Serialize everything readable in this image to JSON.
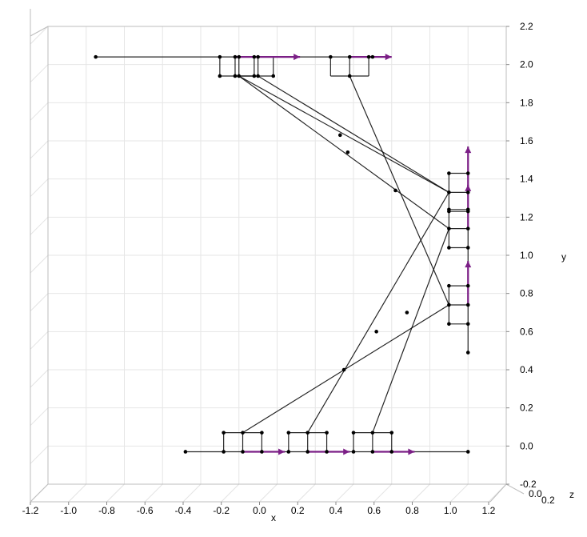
{
  "chart_data": {
    "type": "line3d",
    "xlabel": "x",
    "ylabel": "y",
    "zlabel": "z",
    "xlim": [
      -1.2,
      1.2
    ],
    "ylim": [
      -0.2,
      2.2
    ],
    "zlim": [
      0.0,
      0.2
    ],
    "x_ticks": [
      "-1.2",
      "-1.0",
      "-0.8",
      "-0.6",
      "-0.4",
      "-0.2",
      "0.0",
      "0.2",
      "0.4",
      "0.6",
      "0.8",
      "1.0",
      "1.2"
    ],
    "x_tick_values": [
      -1.2,
      -1.0,
      -0.8,
      -0.6,
      -0.4,
      -0.2,
      0.0,
      0.2,
      0.4,
      0.6,
      0.8,
      1.0,
      1.2
    ],
    "y_ticks": [
      "-0.2",
      "0.0",
      "0.2",
      "0.4",
      "0.6",
      "0.8",
      "1.0",
      "1.2",
      "1.4",
      "1.6",
      "1.8",
      "2.0",
      "2.2"
    ],
    "y_tick_values": [
      -0.2,
      0.0,
      0.2,
      0.4,
      0.6,
      0.8,
      1.0,
      1.2,
      1.4,
      1.6,
      1.8,
      2.0,
      2.2
    ],
    "z_ticks": [
      "0.0",
      "0.2"
    ],
    "z_tick_values": [
      0.0,
      0.2
    ],
    "grid": true,
    "line_color": "#000000",
    "arrow_color": "#7b1f86",
    "lines": [
      [
        [
          -0.95,
          2.04
        ],
        [
          0.5,
          2.04
        ]
      ],
      [
        [
          -0.48,
          -0.03
        ],
        [
          1.0,
          -0.03
        ]
      ],
      [
        [
          1.0,
          0.49
        ],
        [
          1.0,
          1.57
        ]
      ],
      [
        [
          -0.3,
          2.04
        ],
        [
          -0.3,
          1.94
        ]
      ],
      [
        [
          -0.3,
          1.94
        ],
        [
          -0.1,
          1.94
        ]
      ],
      [
        [
          -0.1,
          1.94
        ],
        [
          -0.1,
          2.04
        ]
      ],
      [
        [
          -0.2,
          2.04
        ],
        [
          -0.2,
          1.94
        ]
      ],
      [
        [
          -0.22,
          2.04
        ],
        [
          -0.22,
          1.94
        ]
      ],
      [
        [
          -0.22,
          1.94
        ],
        [
          -0.02,
          1.94
        ]
      ],
      [
        [
          -0.02,
          1.94
        ],
        [
          -0.02,
          2.04
        ]
      ],
      [
        [
          -0.12,
          2.04
        ],
        [
          -0.12,
          1.94
        ]
      ],
      [
        [
          0.28,
          2.04
        ],
        [
          0.28,
          1.94
        ]
      ],
      [
        [
          0.28,
          1.94
        ],
        [
          0.48,
          1.94
        ]
      ],
      [
        [
          0.48,
          1.94
        ],
        [
          0.48,
          2.04
        ]
      ],
      [
        [
          0.38,
          2.04
        ],
        [
          0.38,
          1.94
        ]
      ],
      [
        [
          -0.28,
          -0.03
        ],
        [
          -0.28,
          0.07
        ]
      ],
      [
        [
          -0.28,
          0.07
        ],
        [
          -0.08,
          0.07
        ]
      ],
      [
        [
          -0.08,
          0.07
        ],
        [
          -0.08,
          -0.03
        ]
      ],
      [
        [
          -0.18,
          -0.03
        ],
        [
          -0.18,
          0.07
        ]
      ],
      [
        [
          0.06,
          -0.03
        ],
        [
          0.06,
          0.07
        ]
      ],
      [
        [
          0.06,
          0.07
        ],
        [
          0.26,
          0.07
        ]
      ],
      [
        [
          0.26,
          0.07
        ],
        [
          0.26,
          -0.03
        ]
      ],
      [
        [
          0.16,
          -0.03
        ],
        [
          0.16,
          0.07
        ]
      ],
      [
        [
          0.4,
          -0.03
        ],
        [
          0.4,
          0.07
        ]
      ],
      [
        [
          0.4,
          0.07
        ],
        [
          0.6,
          0.07
        ]
      ],
      [
        [
          0.6,
          0.07
        ],
        [
          0.6,
          -0.03
        ]
      ],
      [
        [
          0.5,
          -0.03
        ],
        [
          0.5,
          0.07
        ]
      ],
      [
        [
          1.0,
          1.43
        ],
        [
          0.9,
          1.43
        ]
      ],
      [
        [
          0.9,
          1.43
        ],
        [
          0.9,
          1.23
        ]
      ],
      [
        [
          0.9,
          1.23
        ],
        [
          1.0,
          1.23
        ]
      ],
      [
        [
          1.0,
          1.33
        ],
        [
          0.9,
          1.33
        ]
      ],
      [
        [
          1.0,
          1.24
        ],
        [
          0.9,
          1.24
        ]
      ],
      [
        [
          0.9,
          1.24
        ],
        [
          0.9,
          1.04
        ]
      ],
      [
        [
          0.9,
          1.04
        ],
        [
          1.0,
          1.04
        ]
      ],
      [
        [
          1.0,
          1.14
        ],
        [
          0.9,
          1.14
        ]
      ],
      [
        [
          1.0,
          0.84
        ],
        [
          0.9,
          0.84
        ]
      ],
      [
        [
          0.9,
          0.84
        ],
        [
          0.9,
          0.64
        ]
      ],
      [
        [
          0.9,
          0.64
        ],
        [
          1.0,
          0.64
        ]
      ],
      [
        [
          1.0,
          0.74
        ],
        [
          0.9,
          0.74
        ]
      ],
      [
        [
          -0.2,
          1.94
        ],
        [
          0.9,
          1.33
        ]
      ],
      [
        [
          -0.2,
          1.94
        ],
        [
          0.9,
          1.14
        ]
      ],
      [
        [
          -0.1,
          1.94
        ],
        [
          0.9,
          1.33
        ]
      ],
      [
        [
          0.38,
          1.94
        ],
        [
          0.9,
          0.74
        ]
      ],
      [
        [
          -0.18,
          0.07
        ],
        [
          0.9,
          0.74
        ]
      ],
      [
        [
          0.16,
          0.07
        ],
        [
          0.9,
          1.33
        ]
      ],
      [
        [
          0.5,
          0.07
        ],
        [
          0.9,
          1.14
        ]
      ]
    ],
    "points": [
      [
        -0.95,
        2.04
      ],
      [
        -0.3,
        2.04
      ],
      [
        -0.2,
        2.04
      ],
      [
        -0.22,
        2.04
      ],
      [
        -0.12,
        2.04
      ],
      [
        -0.1,
        2.04
      ],
      [
        0.28,
        2.04
      ],
      [
        0.38,
        2.04
      ],
      [
        0.48,
        2.04
      ],
      [
        0.5,
        2.04
      ],
      [
        -0.3,
        1.94
      ],
      [
        -0.2,
        1.94
      ],
      [
        -0.22,
        1.94
      ],
      [
        -0.12,
        1.94
      ],
      [
        -0.1,
        1.94
      ],
      [
        -0.02,
        1.94
      ],
      [
        0.38,
        1.94
      ],
      [
        -0.48,
        -0.03
      ],
      [
        -0.28,
        -0.03
      ],
      [
        -0.18,
        -0.03
      ],
      [
        -0.08,
        -0.03
      ],
      [
        0.06,
        -0.03
      ],
      [
        0.16,
        -0.03
      ],
      [
        0.26,
        -0.03
      ],
      [
        0.4,
        -0.03
      ],
      [
        0.5,
        -0.03
      ],
      [
        0.6,
        -0.03
      ],
      [
        1.0,
        -0.03
      ],
      [
        -0.28,
        0.07
      ],
      [
        -0.18,
        0.07
      ],
      [
        -0.08,
        0.07
      ],
      [
        0.06,
        0.07
      ],
      [
        0.16,
        0.07
      ],
      [
        0.26,
        0.07
      ],
      [
        0.4,
        0.07
      ],
      [
        0.5,
        0.07
      ],
      [
        0.6,
        0.07
      ],
      [
        1.0,
        0.49
      ],
      [
        1.0,
        0.64
      ],
      [
        0.9,
        0.64
      ],
      [
        0.9,
        0.74
      ],
      [
        1.0,
        0.74
      ],
      [
        1.0,
        0.84
      ],
      [
        0.9,
        0.84
      ],
      [
        0.9,
        1.04
      ],
      [
        1.0,
        1.04
      ],
      [
        0.9,
        1.14
      ],
      [
        1.0,
        1.14
      ],
      [
        0.9,
        1.23
      ],
      [
        1.0,
        1.23
      ],
      [
        0.9,
        1.24
      ],
      [
        1.0,
        1.24
      ],
      [
        0.9,
        1.33
      ],
      [
        1.0,
        1.33
      ],
      [
        0.9,
        1.43
      ],
      [
        1.0,
        1.43
      ],
      [
        0.33,
        1.63
      ],
      [
        0.37,
        1.54
      ],
      [
        0.62,
        1.34
      ],
      [
        0.68,
        0.7
      ],
      [
        0.52,
        0.6
      ],
      [
        0.35,
        0.4
      ]
    ],
    "arrows": [
      [
        [
          -0.22,
          2.04
        ],
        [
          0.12,
          2.04
        ]
      ],
      [
        [
          0.38,
          2.04
        ],
        [
          0.6,
          2.04
        ]
      ],
      [
        [
          -0.18,
          -0.03
        ],
        [
          0.04,
          -0.03
        ]
      ],
      [
        [
          0.16,
          -0.03
        ],
        [
          0.38,
          -0.03
        ]
      ],
      [
        [
          0.5,
          -0.03
        ],
        [
          0.72,
          -0.03
        ]
      ],
      [
        [
          1.0,
          0.74
        ],
        [
          1.0,
          0.97
        ]
      ],
      [
        [
          1.0,
          1.14
        ],
        [
          1.0,
          1.37
        ]
      ],
      [
        [
          1.0,
          1.33
        ],
        [
          1.0,
          1.57
        ]
      ]
    ]
  }
}
